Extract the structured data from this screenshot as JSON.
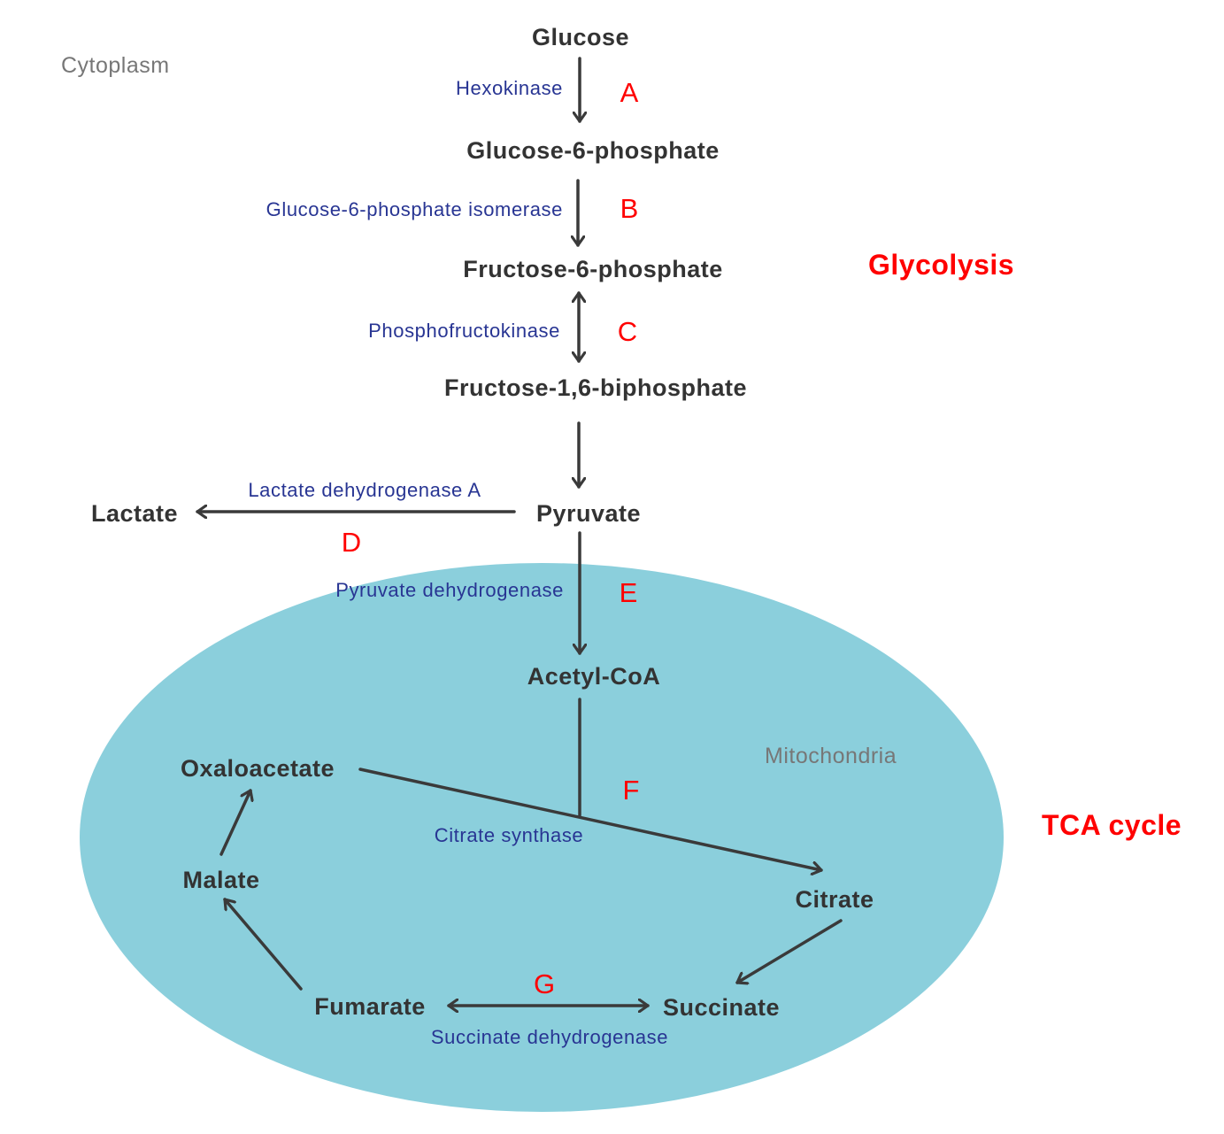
{
  "colors": {
    "metabolite": "#333333",
    "enzyme": "#283593",
    "step_letter": "#ff0000",
    "region_label": "#777777",
    "pathway_label": "#ff0000",
    "mitochondria_fill": "#8bcfdc",
    "arrow": "#3a3a3a"
  },
  "regions": {
    "cytoplasm": "Cytoplasm",
    "mitochondria": "Mitochondria"
  },
  "pathways": {
    "glycolysis": "Glycolysis",
    "tca_cycle": "TCA cycle"
  },
  "metabolites": {
    "glucose": "Glucose",
    "glucose_6_phosphate": "Glucose-6-phosphate",
    "fructose_6_phosphate": "Fructose-6-phosphate",
    "fructose_1_6_biphosphate": "Fructose-1,6-biphosphate",
    "pyruvate": "Pyruvate",
    "lactate": "Lactate",
    "acetyl_coa": "Acetyl-CoA",
    "oxaloacetate": "Oxaloacetate",
    "citrate": "Citrate",
    "malate": "Malate",
    "fumarate": "Fumarate",
    "succinate": "Succinate"
  },
  "enzymes": {
    "hexokinase": "Hexokinase",
    "g6p_isomerase": "Glucose-6-phosphate isomerase",
    "phosphofructokinase": "Phosphofructokinase",
    "lactate_dehydrogenase_a": "Lactate dehydrogenase A",
    "pyruvate_dehydrogenase": "Pyruvate dehydrogenase",
    "citrate_synthase": "Citrate synthase",
    "succinate_dehydrogenase": "Succinate dehydrogenase"
  },
  "steps": {
    "a": "A",
    "b": "B",
    "c": "C",
    "d": "D",
    "e": "E",
    "f": "F",
    "g": "G"
  }
}
